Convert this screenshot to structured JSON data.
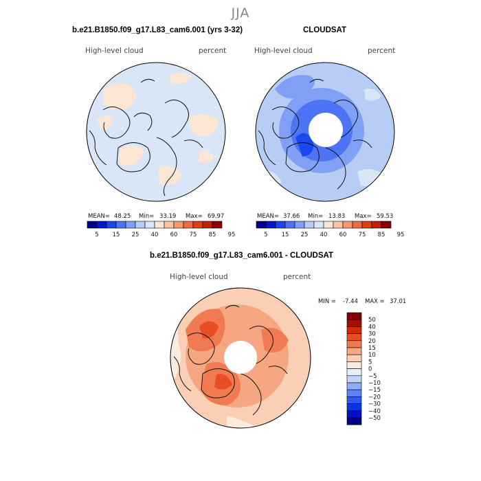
{
  "season": "JJA",
  "model_label": "b.e21.B1850.f09_g17.L83_cam6.001 (yrs 3-32)",
  "obs_label": "CLOUDSAT",
  "diff_label": "b.e21.B1850.f09_g17.L83_cam6.001 - CLOUDSAT",
  "variable": "High-level cloud",
  "units": "percent",
  "colors": {
    "abs_scale": [
      "#00008b",
      "#0015cf",
      "#1b47f0",
      "#4c74f5",
      "#7fa0f4",
      "#b7cdf6",
      "#d8e6f8",
      "#fde6d4",
      "#fbc4a4",
      "#f5976f",
      "#ee6a44",
      "#e23b16",
      "#c21e06",
      "#8b0000"
    ],
    "diff_scale": [
      "#00008b",
      "#0010c4",
      "#0a37e6",
      "#2c5bef",
      "#5b83f2",
      "#8fadf4",
      "#c3d6f8",
      "#e6effb",
      "#fdebde",
      "#fbcfb5",
      "#f6a681",
      "#f07a52",
      "#e84d24",
      "#d32a07",
      "#a60c00",
      "#800000"
    ]
  },
  "chart_data": [
    {
      "type": "heatmap",
      "panel": "model",
      "projection": "polar-stereographic-north",
      "title": "b.e21.B1850.f09_g17.L83_cam6.001 (yrs 3-32)",
      "subtitle_left": "High-level cloud",
      "subtitle_right": "percent",
      "stats": {
        "mean": "48.25",
        "min": "33.19",
        "max": "69.97"
      },
      "stats_text": {
        "mean_label": "MEAN=",
        "min_label": "Min=",
        "max_label": "Max="
      },
      "colorbar": {
        "levels": [
          "5",
          "15",
          "25",
          "40",
          "60",
          "75",
          "85",
          "95"
        ]
      }
    },
    {
      "type": "heatmap",
      "panel": "obs",
      "projection": "polar-stereographic-north",
      "title": "CLOUDSAT",
      "subtitle_left": "High-level cloud",
      "subtitle_right": "percent",
      "stats": {
        "mean": "37.66",
        "min": "13.83",
        "max": "59.53"
      },
      "stats_text": {
        "mean_label": "MEAN=",
        "min_label": "Min=",
        "max_label": "Max="
      },
      "colorbar": {
        "levels": [
          "5",
          "15",
          "25",
          "40",
          "60",
          "75",
          "85",
          "95"
        ]
      }
    },
    {
      "type": "heatmap",
      "panel": "difference",
      "projection": "polar-stereographic-north",
      "title": "b.e21.B1850.f09_g17.L83_cam6.001 - CLOUDSAT",
      "subtitle_left": "High-level cloud",
      "subtitle_right": "percent",
      "stats": {
        "min": "-7.44",
        "max": "37.01"
      },
      "stats_text": {
        "min_label": "MIN =",
        "max_label": "MAX ="
      },
      "colorbar": {
        "levels": [
          "50",
          "40",
          "30",
          "20",
          "15",
          "10",
          "5",
          "0",
          "−5",
          "−10",
          "−15",
          "−20",
          "−30",
          "−40",
          "−50"
        ]
      }
    }
  ]
}
